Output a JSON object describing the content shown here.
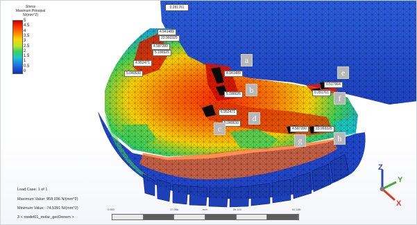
{
  "legend": {
    "title_lines": [
      "Stress",
      "Maximum Principal",
      "N/(mm^2)"
    ],
    "ticks": [
      "5",
      "4.5",
      "4",
      "3.5",
      "3",
      "2.5",
      "2",
      "1.5",
      "1",
      "0.5",
      "0"
    ],
    "colors": [
      "#c00000",
      "#ff2a00",
      "#ff7a00",
      "#ffd400",
      "#b8e62a",
      "#3fd25a",
      "#19c8c8",
      "#1f7ee8",
      "#1030b8"
    ]
  },
  "top_tag": "0.281761",
  "probes": [
    "4.941489",
    "23.993325",
    "4.587280",
    "5.186625",
    "4.952471",
    "5.040630",
    "4.941489",
    "5.186625",
    "0.517964",
    "0.281761",
    "6.952471",
    "5.040630",
    "4.587280",
    "23.993325"
  ],
  "callouts": [
    "a",
    "b",
    "c",
    "d",
    "e",
    "f",
    "g",
    "h"
  ],
  "info": {
    "load_case": "Load Case:   1 of 1",
    "max_value": "Maximum Value: 958.036 N/(mm^2)",
    "min_value": "Minimum Value: -74.5391 N/(mm^2)",
    "model_name": "3 < model01_molar_gecDonem >"
  },
  "ruler": {
    "labels": [
      "0.000",
      "17.066",
      "mm",
      "34.110",
      "51.165"
    ]
  },
  "triad": {
    "x": "X",
    "y": "Y",
    "z": "Z",
    "colors": {
      "x": "#e03a1e",
      "y": "#3fae2a",
      "z": "#2348c8"
    }
  }
}
